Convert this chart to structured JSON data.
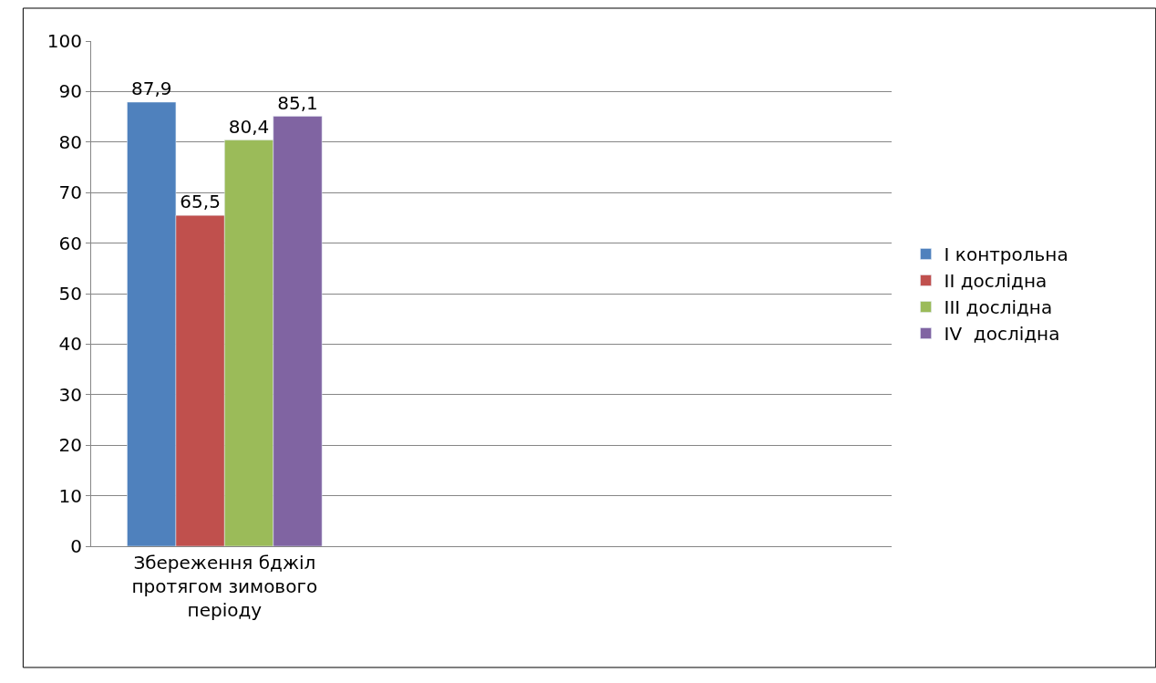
{
  "chart_data": {
    "type": "bar",
    "categories": [
      "Збереження бджіл протягом зимового періоду",
      null,
      null
    ],
    "series": [
      {
        "name": "I контрольна",
        "color": "#4f81bd",
        "values": [
          87.9,
          null,
          null
        ],
        "value_labels": [
          "87,9",
          null,
          null
        ]
      },
      {
        "name": "II дослідна",
        "color": "#c0504d",
        "values": [
          65.5,
          null,
          null
        ],
        "value_labels": [
          "65,5",
          null,
          null
        ]
      },
      {
        "name": "III дослідна",
        "color": "#9bbb59",
        "values": [
          80.4,
          null,
          null
        ],
        "value_labels": [
          "80,4",
          null,
          null
        ]
      },
      {
        "name": "IV  дослідна",
        "color": "#8064a2",
        "values": [
          85.1,
          null,
          null
        ],
        "value_labels": [
          "85,1",
          null,
          null
        ]
      }
    ],
    "ylim": [
      0,
      100
    ],
    "yticks": [
      0,
      10,
      20,
      30,
      40,
      50,
      60,
      70,
      80,
      90,
      100
    ],
    "grid": "y",
    "legend": "right"
  }
}
